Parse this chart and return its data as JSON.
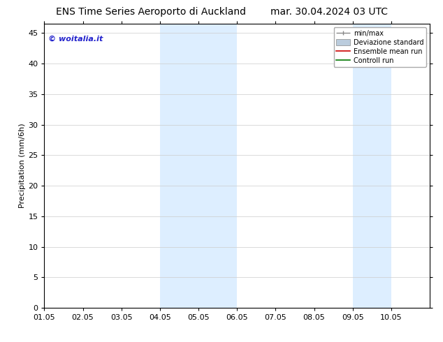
{
  "title_left": "ENS Time Series Aeroporto di Auckland",
  "title_right": "mar. 30.04.2024 03 UTC",
  "ylabel": "Precipitation (mm/6h)",
  "xlabel_ticks": [
    "01.05",
    "02.05",
    "03.05",
    "04.05",
    "05.05",
    "06.05",
    "07.05",
    "08.05",
    "09.05",
    "10.05"
  ],
  "xlim": [
    0,
    10
  ],
  "ylim": [
    0,
    46.5
  ],
  "yticks": [
    0,
    5,
    10,
    15,
    20,
    25,
    30,
    35,
    40,
    45
  ],
  "shaded_regions": [
    {
      "x_start": 3.0,
      "x_end": 4.0,
      "color": "#ddeeff"
    },
    {
      "x_start": 4.0,
      "x_end": 5.0,
      "color": "#ddeeff"
    },
    {
      "x_start": 8.0,
      "x_end": 9.0,
      "color": "#ddeeff"
    }
  ],
  "watermark_text": "© woitalia.it",
  "watermark_color": "#2222cc",
  "legend_labels": [
    "min/max",
    "Deviazione standard",
    "Ensemble mean run",
    "Controll run"
  ],
  "legend_colors_line": [
    "#888888",
    "#bbccdd",
    "#cc0000",
    "#007700"
  ],
  "background_color": "#ffffff",
  "title_fontsize": 10,
  "tick_fontsize": 8,
  "ylabel_fontsize": 8
}
